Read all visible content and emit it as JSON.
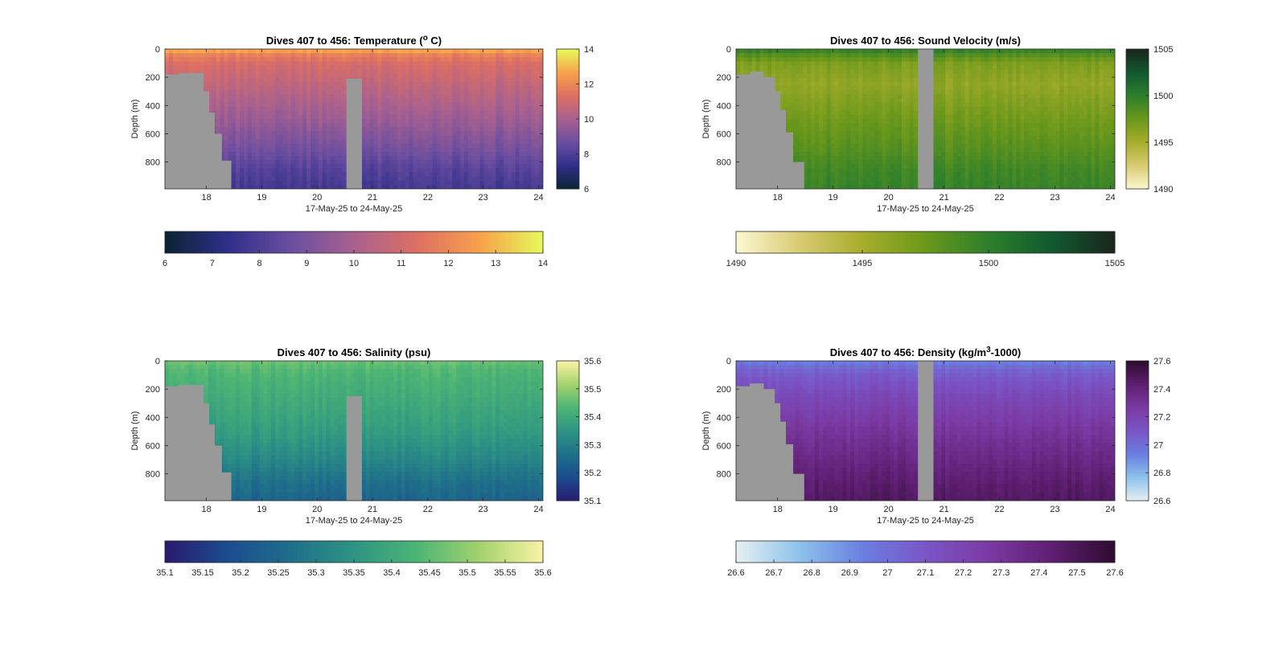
{
  "figure": {
    "background": "#ffffff",
    "mask_color": "#999999"
  },
  "chart_data": [
    {
      "type": "heatmap",
      "title_main": "Dives 407 to 456: Temperature (",
      "title_sup": "o",
      "title_tail": " C)",
      "xlabel": "17-May-25 to 24-May-25",
      "ylabel": "Depth (m)",
      "x": {
        "min": 17.25,
        "max": 24.08,
        "ticks": [
          18,
          19,
          20,
          21,
          22,
          23,
          24
        ],
        "tick_labels": [
          "18",
          "19",
          "20",
          "21",
          "22",
          "23",
          "24"
        ]
      },
      "y": {
        "min": 0,
        "max": 990,
        "reversed": true,
        "ticks": [
          0,
          200,
          400,
          600,
          800
        ],
        "tick_labels": [
          "0",
          "200",
          "400",
          "600",
          "800"
        ]
      },
      "colorbar_right": {
        "range": [
          6,
          14
        ],
        "ticks": [
          6,
          8,
          10,
          12,
          14
        ],
        "tick_labels": [
          "6",
          "8",
          "10",
          "12",
          "14"
        ]
      },
      "colorbar_bottom": {
        "range": [
          6,
          14
        ],
        "ticks": [
          6,
          7,
          8,
          9,
          10,
          11,
          12,
          13,
          14
        ],
        "tick_labels": [
          "6",
          "7",
          "8",
          "9",
          "10",
          "11",
          "12",
          "13",
          "14"
        ]
      },
      "colormap": [
        "#0b2333",
        "#2f2e89",
        "#6b4ea0",
        "#a8618f",
        "#dd6f63",
        "#f7a14b",
        "#e8fa5b"
      ],
      "profile": {
        "depth": [
          0,
          30,
          100,
          250,
          500,
          700,
          850,
          990
        ],
        "value": [
          13.2,
          12.0,
          11.2,
          10.6,
          9.7,
          8.9,
          8.2,
          7.8
        ]
      },
      "gap_columns": [
        {
          "x_start": 20.53,
          "x_end": 20.81,
          "bottom_depth": 0
        },
        {
          "x_start": 20.53,
          "x_end": 20.81,
          "bottom_depth": 0
        }
      ],
      "mask_steps": [
        {
          "x": 17.25,
          "bottom_depth": 180
        },
        {
          "x": 17.5,
          "bottom_depth": 170
        },
        {
          "x": 17.75,
          "bottom_depth": 170
        },
        {
          "x": 17.95,
          "bottom_depth": 300
        },
        {
          "x": 18.05,
          "bottom_depth": 450
        },
        {
          "x": 18.15,
          "bottom_depth": 600
        },
        {
          "x": 18.28,
          "bottom_depth": 790
        },
        {
          "x": 18.45,
          "bottom_depth": 990
        }
      ],
      "gap": {
        "x_start": 20.53,
        "x_end": 20.81,
        "top_depth": 210
      }
    },
    {
      "type": "heatmap",
      "title_main": "Dives 407 to 456: Sound Velocity (m/s)",
      "title_sup": "",
      "title_tail": "",
      "xlabel": "17-May-25 to 24-May-25",
      "ylabel": "Depth (m)",
      "x": {
        "min": 17.25,
        "max": 24.08,
        "ticks": [
          18,
          19,
          20,
          21,
          22,
          23,
          24
        ],
        "tick_labels": [
          "18",
          "19",
          "20",
          "21",
          "22",
          "23",
          "24"
        ]
      },
      "y": {
        "min": 0,
        "max": 990,
        "reversed": true,
        "ticks": [
          0,
          200,
          400,
          600,
          800
        ],
        "tick_labels": [
          "0",
          "200",
          "400",
          "600",
          "800"
        ]
      },
      "colorbar_right": {
        "range": [
          1490,
          1505
        ],
        "ticks": [
          1490,
          1495,
          1500,
          1505
        ],
        "tick_labels": [
          "1490",
          "1495",
          "1500",
          "1505"
        ]
      },
      "colorbar_bottom": {
        "range": [
          1490,
          1505
        ],
        "ticks": [
          1490,
          1495,
          1500,
          1505
        ],
        "tick_labels": [
          "1490",
          "1495",
          "1500",
          "1505"
        ]
      },
      "colormap": [
        "#fcf8d2",
        "#d9cb73",
        "#a8ad2c",
        "#6b981b",
        "#2d7f2c",
        "#12592f",
        "#1a251c"
      ],
      "profile": {
        "depth": [
          0,
          30,
          100,
          250,
          500,
          700,
          850,
          990
        ],
        "value": [
          1500.3,
          1498.8,
          1496.8,
          1495.9,
          1497.3,
          1498.3,
          1499.2,
          1499.6
        ]
      },
      "gap_columns": [],
      "mask_steps": [
        {
          "x": 17.25,
          "bottom_depth": 180
        },
        {
          "x": 17.5,
          "bottom_depth": 160
        },
        {
          "x": 17.75,
          "bottom_depth": 200
        },
        {
          "x": 17.95,
          "bottom_depth": 300
        },
        {
          "x": 18.05,
          "bottom_depth": 430
        },
        {
          "x": 18.15,
          "bottom_depth": 590
        },
        {
          "x": 18.28,
          "bottom_depth": 800
        },
        {
          "x": 18.48,
          "bottom_depth": 990
        }
      ],
      "gap": {
        "x_start": 20.53,
        "x_end": 20.81,
        "top_depth": 0
      }
    },
    {
      "type": "heatmap",
      "title_main": "Dives 407 to 456: Salinity (psu)",
      "title_sup": "",
      "title_tail": "",
      "xlabel": "17-May-25 to 24-May-25",
      "ylabel": "Depth (m)",
      "x": {
        "min": 17.25,
        "max": 24.08,
        "ticks": [
          18,
          19,
          20,
          21,
          22,
          23,
          24
        ],
        "tick_labels": [
          "18",
          "19",
          "20",
          "21",
          "22",
          "23",
          "24"
        ]
      },
      "y": {
        "min": 0,
        "max": 990,
        "reversed": true,
        "ticks": [
          0,
          200,
          400,
          600,
          800
        ],
        "tick_labels": [
          "0",
          "200",
          "400",
          "600",
          "800"
        ]
      },
      "colorbar_right": {
        "range": [
          35.1,
          35.6
        ],
        "ticks": [
          35.1,
          35.2,
          35.3,
          35.4,
          35.5,
          35.6
        ],
        "tick_labels": [
          "35.1",
          "35.2",
          "35.3",
          "35.4",
          "35.5",
          "35.6"
        ]
      },
      "colorbar_bottom": {
        "range": [
          35.1,
          35.6
        ],
        "ticks": [
          35.1,
          35.15,
          35.2,
          35.25,
          35.3,
          35.35,
          35.4,
          35.45,
          35.5,
          35.55,
          35.6
        ],
        "tick_labels": [
          "35.1",
          "35.15",
          "35.2",
          "35.25",
          "35.3",
          "35.35",
          "35.4",
          "35.45",
          "35.5",
          "35.55",
          "35.6"
        ]
      },
      "colormap": [
        "#2a1a6e",
        "#1b4c8f",
        "#1f6f8a",
        "#2e9483",
        "#4cb574",
        "#a3d26e",
        "#fbf3a6"
      ],
      "profile": {
        "depth": [
          0,
          30,
          100,
          250,
          500,
          700,
          850,
          990
        ],
        "value": [
          35.47,
          35.45,
          35.43,
          35.41,
          35.37,
          35.32,
          35.27,
          35.24
        ]
      },
      "gap_columns": [],
      "mask_steps": [
        {
          "x": 17.25,
          "bottom_depth": 180
        },
        {
          "x": 17.5,
          "bottom_depth": 170
        },
        {
          "x": 17.75,
          "bottom_depth": 170
        },
        {
          "x": 17.95,
          "bottom_depth": 300
        },
        {
          "x": 18.05,
          "bottom_depth": 450
        },
        {
          "x": 18.15,
          "bottom_depth": 600
        },
        {
          "x": 18.28,
          "bottom_depth": 790
        },
        {
          "x": 18.45,
          "bottom_depth": 990
        }
      ],
      "gap": {
        "x_start": 20.53,
        "x_end": 20.81,
        "top_depth": 250
      }
    },
    {
      "type": "heatmap",
      "title_main": "Dives 407 to 456: Density (kg/m",
      "title_sup": "3",
      "title_tail": "-1000)",
      "xlabel": "17-May-25 to 24-May-25",
      "ylabel": "Depth (m)",
      "x": {
        "min": 17.25,
        "max": 24.08,
        "ticks": [
          18,
          19,
          20,
          21,
          22,
          23,
          24
        ],
        "tick_labels": [
          "18",
          "19",
          "20",
          "21",
          "22",
          "23",
          "24"
        ]
      },
      "y": {
        "min": 0,
        "max": 990,
        "reversed": true,
        "ticks": [
          0,
          200,
          400,
          600,
          800
        ],
        "tick_labels": [
          "0",
          "200",
          "400",
          "600",
          "800"
        ]
      },
      "colorbar_right": {
        "range": [
          26.6,
          27.6
        ],
        "ticks": [
          26.6,
          26.8,
          27.0,
          27.2,
          27.4,
          27.6
        ],
        "tick_labels": [
          "26.6",
          "26.8",
          "27",
          "27.2",
          "27.4",
          "27.6"
        ]
      },
      "colorbar_bottom": {
        "range": [
          26.6,
          27.6
        ],
        "ticks": [
          26.6,
          26.7,
          26.8,
          26.9,
          27.0,
          27.1,
          27.2,
          27.3,
          27.4,
          27.5,
          27.6
        ],
        "tick_labels": [
          "26.6",
          "26.7",
          "26.8",
          "26.9",
          "27",
          "27.1",
          "27.2",
          "27.3",
          "27.4",
          "27.5",
          "27.6"
        ]
      },
      "colormap": [
        "#e6f0f2",
        "#8ec2ec",
        "#6a7fe0",
        "#7a55c6",
        "#7b3aa3",
        "#5e1f72",
        "#2e0c2e"
      ],
      "profile": {
        "depth": [
          0,
          30,
          100,
          250,
          500,
          700,
          850,
          990
        ],
        "value": [
          26.92,
          27.0,
          27.08,
          27.18,
          27.3,
          27.38,
          27.44,
          27.48
        ]
      },
      "gap_columns": [],
      "mask_steps": [
        {
          "x": 17.25,
          "bottom_depth": 180
        },
        {
          "x": 17.5,
          "bottom_depth": 160
        },
        {
          "x": 17.75,
          "bottom_depth": 200
        },
        {
          "x": 17.95,
          "bottom_depth": 300
        },
        {
          "x": 18.05,
          "bottom_depth": 430
        },
        {
          "x": 18.15,
          "bottom_depth": 590
        },
        {
          "x": 18.28,
          "bottom_depth": 800
        },
        {
          "x": 18.48,
          "bottom_depth": 990
        }
      ],
      "gap": {
        "x_start": 20.53,
        "x_end": 20.81,
        "top_depth": 0
      }
    }
  ]
}
